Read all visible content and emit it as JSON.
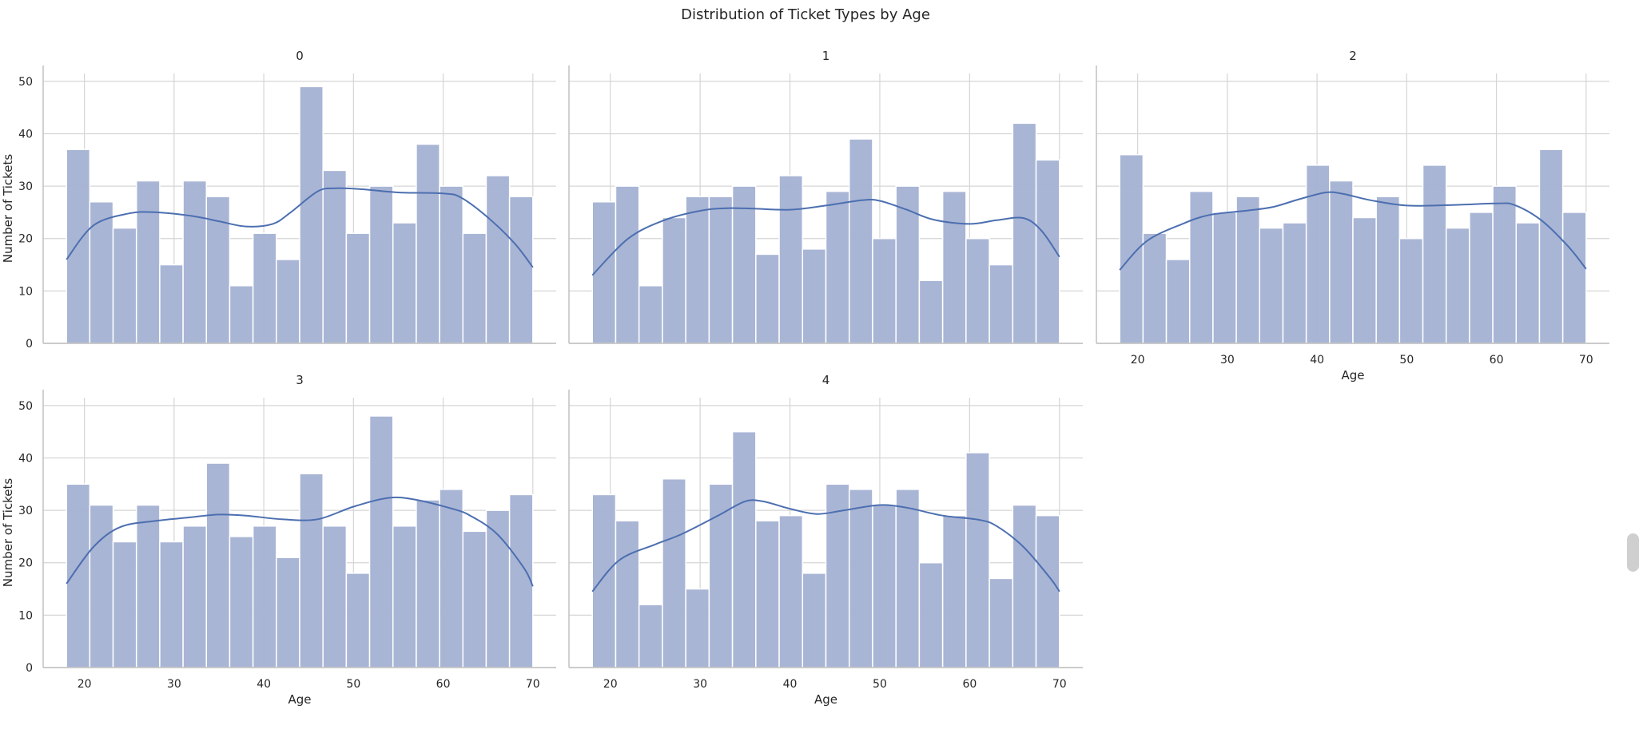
{
  "chart_data": {
    "type": "bar",
    "title": "Distribution of Ticket Types by Age",
    "xlabel": "Age",
    "ylabel": "Number of Tickets",
    "xlim": [
      15.4,
      72.6
    ],
    "ylim": [
      0,
      51.5
    ],
    "xticks": [
      20,
      30,
      40,
      50,
      60,
      70
    ],
    "yticks": [
      0,
      10,
      20,
      30,
      40,
      50
    ],
    "bin_start": 18,
    "bin_width": 2.6,
    "grid": true,
    "colors": {
      "bar": "#a7b4d4",
      "kde": "#4c6fb0",
      "grid": "#d5d5d5",
      "spine": "#bdbdbd"
    },
    "panels": [
      {
        "title": "0",
        "values": [
          37,
          27,
          22,
          31,
          15,
          31,
          28,
          11,
          21,
          16,
          49,
          33,
          21,
          30,
          23,
          38,
          30,
          21,
          32,
          28
        ],
        "kde": [
          [
            18,
            16
          ],
          [
            21,
            22.5
          ],
          [
            25,
            24.8
          ],
          [
            28,
            25
          ],
          [
            32,
            24.3
          ],
          [
            35,
            23.3
          ],
          [
            38,
            22.3
          ],
          [
            41,
            22.8
          ],
          [
            43,
            25
          ],
          [
            46,
            29
          ],
          [
            48,
            29.6
          ],
          [
            51,
            29.4
          ],
          [
            55,
            28.8
          ],
          [
            60,
            28.6
          ],
          [
            62,
            27.8
          ],
          [
            65,
            24
          ],
          [
            68,
            19
          ],
          [
            70,
            14.5
          ]
        ]
      },
      {
        "title": "1",
        "values": [
          27,
          30,
          11,
          24,
          28,
          28,
          30,
          17,
          32,
          18,
          29,
          39,
          20,
          30,
          12,
          29,
          20,
          15,
          42,
          35
        ],
        "kde": [
          [
            18,
            13
          ],
          [
            22,
            20
          ],
          [
            26,
            23.5
          ],
          [
            30,
            25.3
          ],
          [
            33,
            25.8
          ],
          [
            36,
            25.7
          ],
          [
            40,
            25.5
          ],
          [
            44,
            26.3
          ],
          [
            48,
            27.3
          ],
          [
            50,
            27.2
          ],
          [
            53,
            25.5
          ],
          [
            56,
            23.6
          ],
          [
            60,
            22.8
          ],
          [
            63,
            23.5
          ],
          [
            66,
            23.9
          ],
          [
            68,
            21.5
          ],
          [
            70,
            16.5
          ]
        ]
      },
      {
        "title": "2",
        "values": [
          36,
          21,
          16,
          29,
          25,
          28,
          22,
          23,
          34,
          31,
          24,
          28,
          20,
          34,
          22,
          25,
          30,
          23,
          37,
          25
        ],
        "kde": [
          [
            18,
            14
          ],
          [
            21,
            19.5
          ],
          [
            25,
            22.8
          ],
          [
            28,
            24.5
          ],
          [
            32,
            25.3
          ],
          [
            35,
            26
          ],
          [
            38,
            27.5
          ],
          [
            41,
            28.8
          ],
          [
            43,
            28.5
          ],
          [
            46,
            27.3
          ],
          [
            50,
            26.3
          ],
          [
            55,
            26.4
          ],
          [
            60,
            26.7
          ],
          [
            62,
            26.4
          ],
          [
            65,
            23.5
          ],
          [
            68,
            18.5
          ],
          [
            70,
            14.2
          ]
        ]
      },
      {
        "title": "3",
        "values": [
          35,
          31,
          24,
          31,
          24,
          27,
          39,
          25,
          27,
          21,
          37,
          27,
          18,
          48,
          27,
          32,
          34,
          26,
          30,
          33
        ],
        "kde": [
          [
            18,
            16
          ],
          [
            21,
            23
          ],
          [
            24,
            26.8
          ],
          [
            28,
            28
          ],
          [
            32,
            28.7
          ],
          [
            35,
            29.2
          ],
          [
            38,
            29
          ],
          [
            42,
            28.3
          ],
          [
            46,
            28.3
          ],
          [
            50,
            30.7
          ],
          [
            54,
            32.4
          ],
          [
            57,
            32
          ],
          [
            61,
            30.3
          ],
          [
            63,
            29
          ],
          [
            66,
            25.5
          ],
          [
            69,
            19
          ],
          [
            70,
            15.5
          ]
        ]
      },
      {
        "title": "4",
        "values": [
          33,
          28,
          12,
          36,
          15,
          35,
          45,
          28,
          29,
          18,
          35,
          34,
          31,
          34,
          20,
          29,
          41,
          17,
          31,
          29
        ],
        "kde": [
          [
            18,
            14.5
          ],
          [
            21,
            20.5
          ],
          [
            25,
            23.5
          ],
          [
            28,
            25.5
          ],
          [
            32,
            29
          ],
          [
            35,
            31.7
          ],
          [
            37,
            31.7
          ],
          [
            40,
            30.3
          ],
          [
            43,
            29.3
          ],
          [
            46,
            30
          ],
          [
            50,
            31
          ],
          [
            53,
            30.5
          ],
          [
            57,
            29
          ],
          [
            61,
            28.2
          ],
          [
            63,
            27
          ],
          [
            66,
            23
          ],
          [
            69,
            17
          ],
          [
            70,
            14.5
          ]
        ]
      }
    ]
  }
}
